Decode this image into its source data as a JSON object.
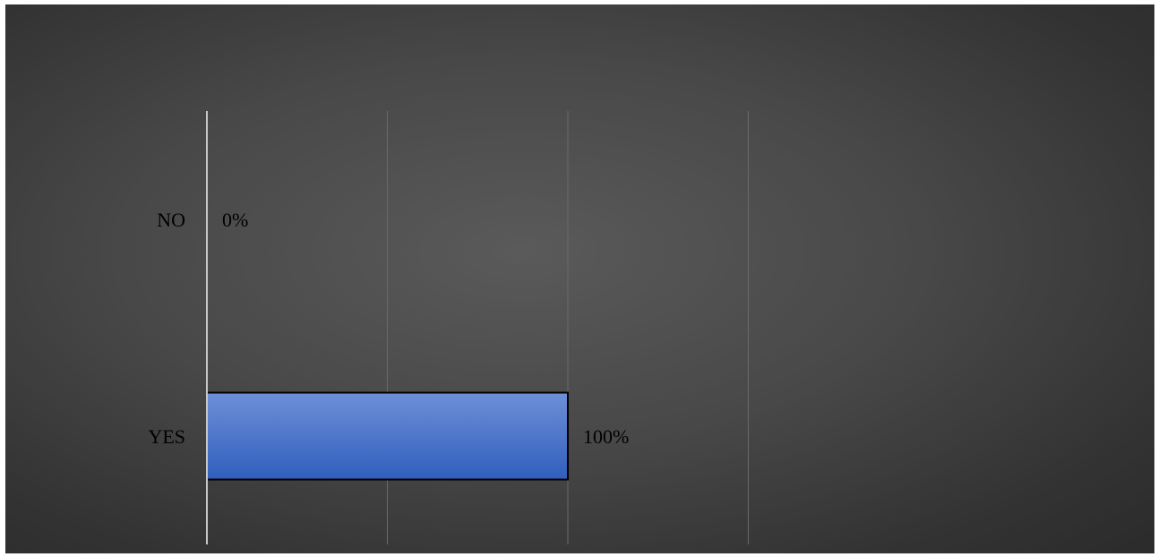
{
  "chart_data": {
    "type": "bar",
    "orientation": "horizontal",
    "categories": [
      "NO",
      "YES"
    ],
    "values": [
      0,
      1
    ],
    "data_labels": [
      "0%",
      "100%"
    ],
    "xlim": [
      0,
      2
    ],
    "grid": true,
    "title": "",
    "xlabel": "",
    "ylabel": "",
    "colors": {
      "bar_top": "#6f8fd8",
      "bar_bottom": "#2f5fbd",
      "bar_border": "#000000",
      "axis": "#c8c8c8",
      "grid": "#6a6a6a"
    }
  }
}
